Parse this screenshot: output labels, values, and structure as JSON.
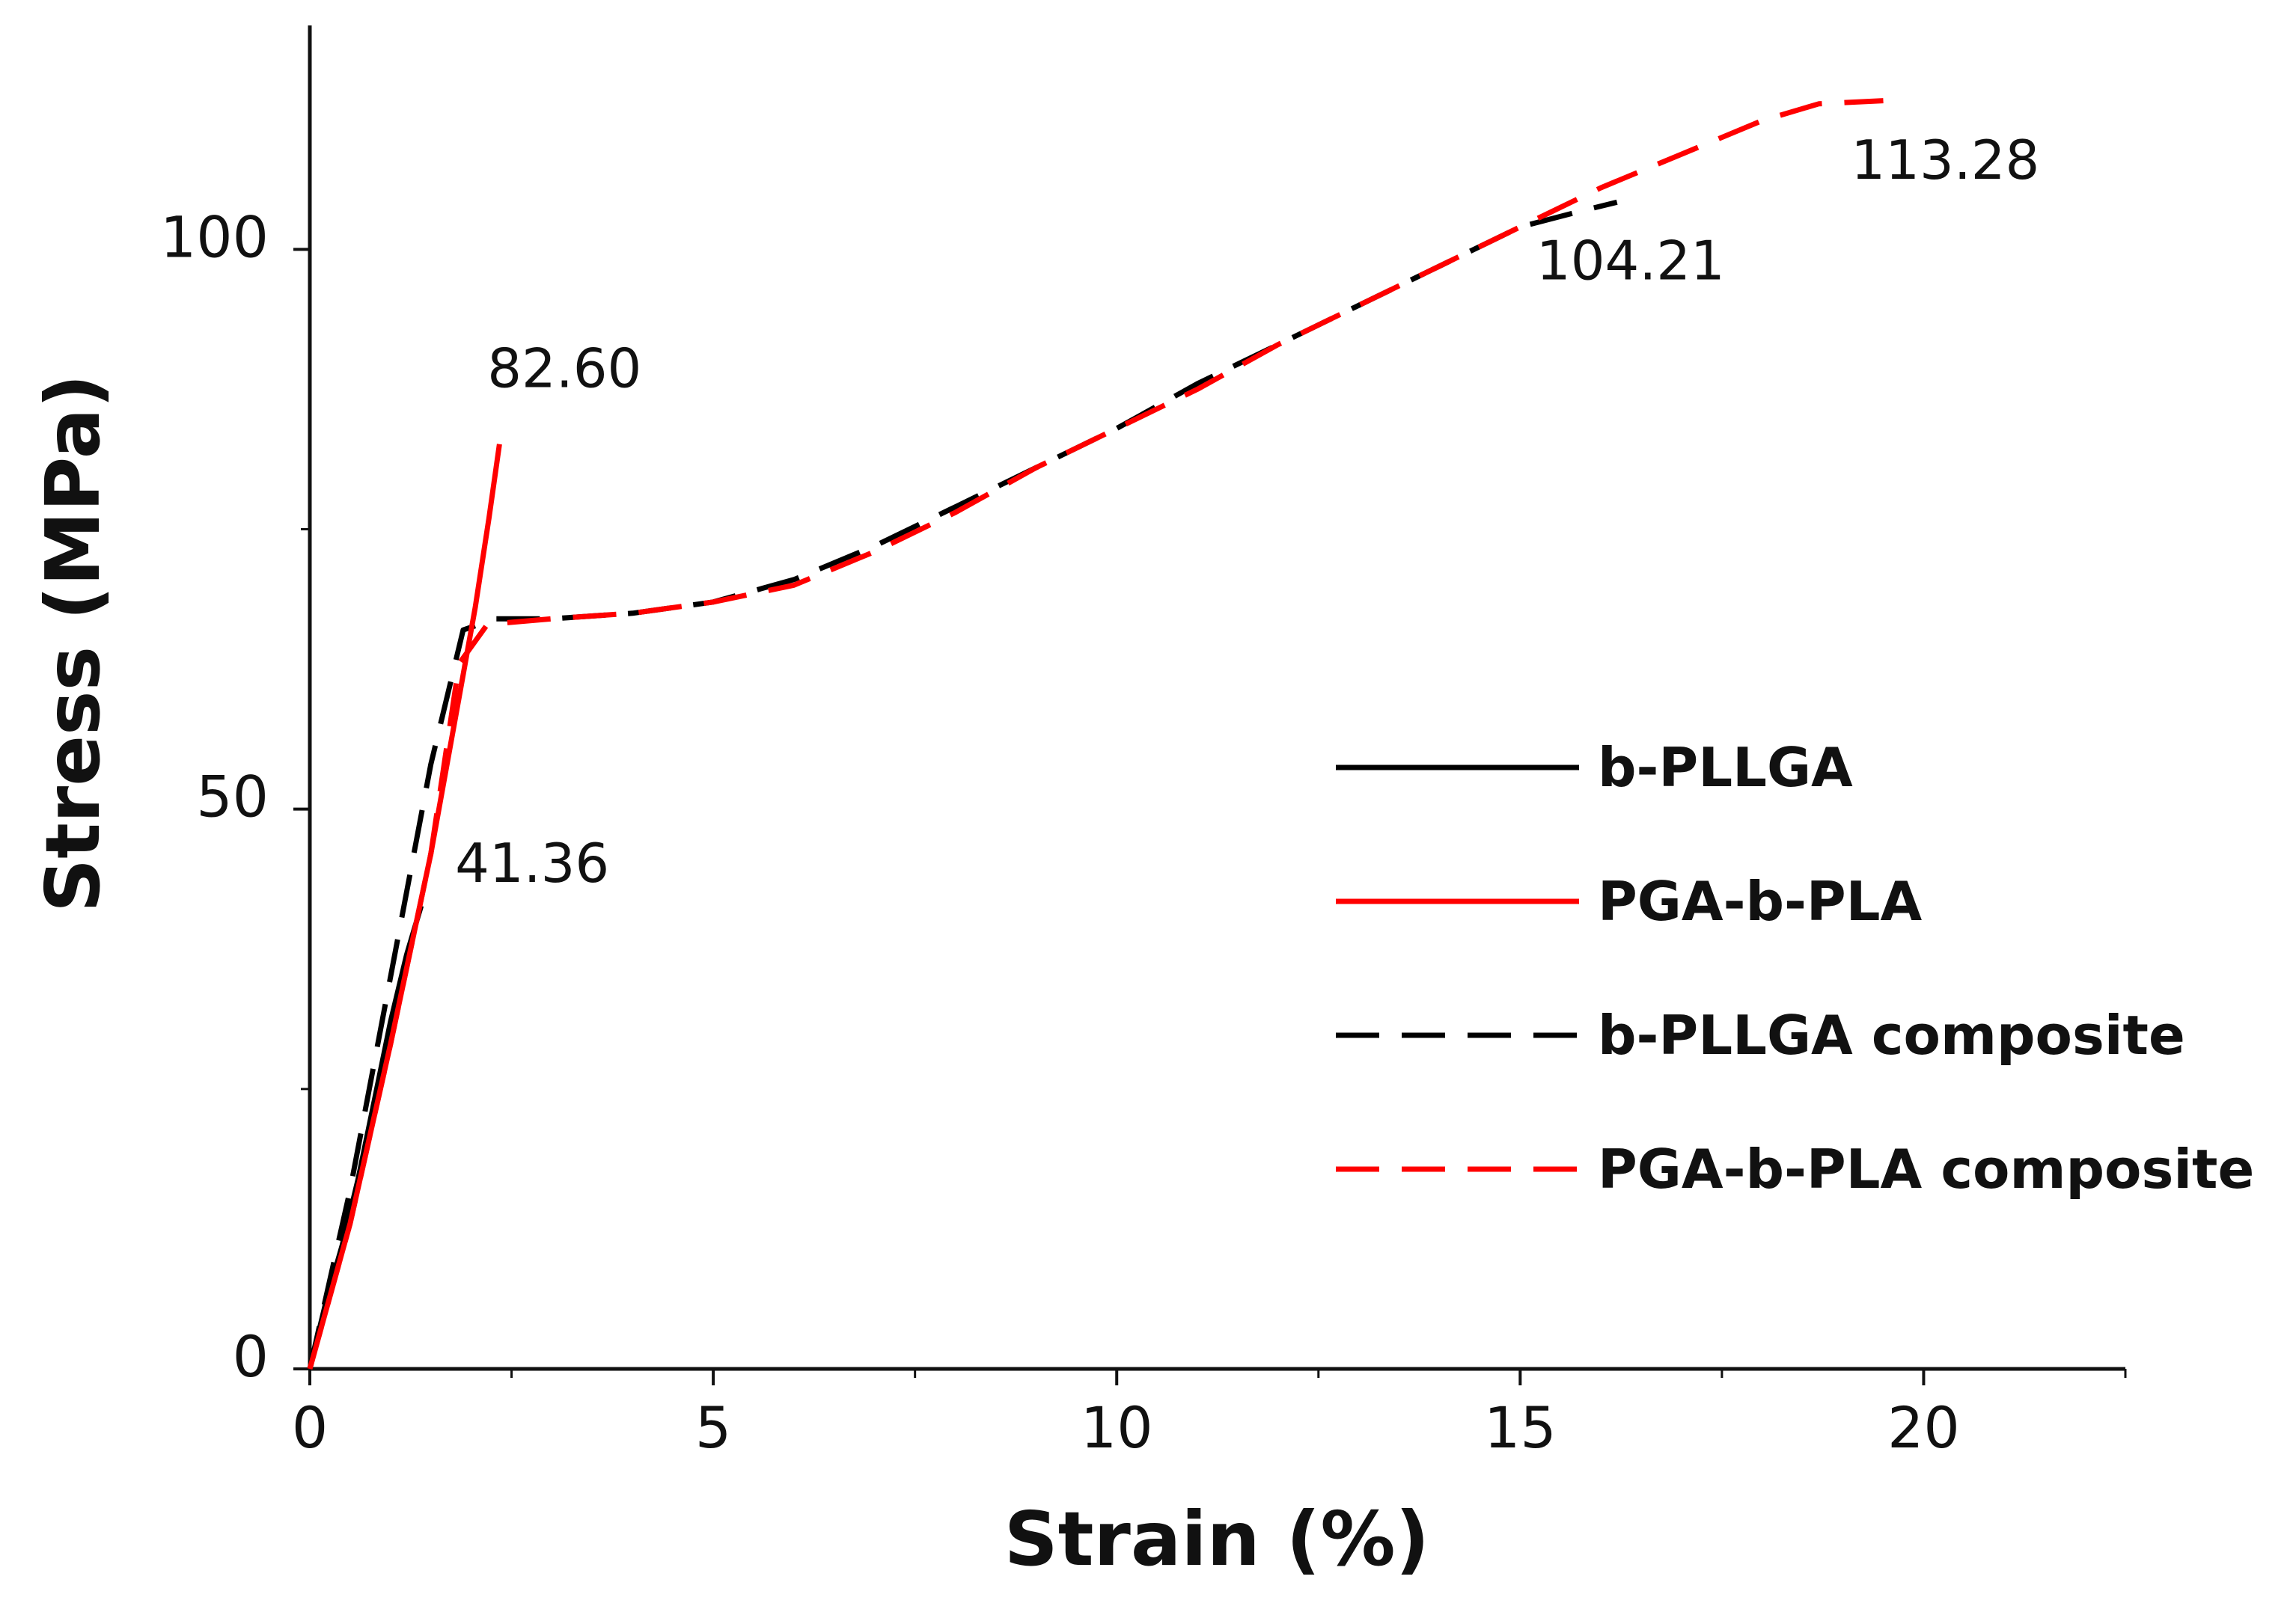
{
  "chart_data": {
    "type": "line",
    "title": "",
    "xlabel": "Strain (%)",
    "ylabel": "Stress (MPa)",
    "xlim": [
      0,
      22.5
    ],
    "ylim": [
      0,
      120
    ],
    "xticks": [
      0,
      5,
      10,
      15,
      20
    ],
    "xtick_labels": [
      "0",
      "5",
      "10",
      "15",
      "20"
    ],
    "xminor": [
      2.5,
      7.5,
      12.5,
      17.5,
      22.5
    ],
    "yticks": [
      0,
      50,
      100
    ],
    "ytick_labels": [
      "0",
      "50",
      "100"
    ],
    "yminor": [
      25,
      75
    ],
    "grid": false,
    "legend_position": "right",
    "series": [
      {
        "name": "b-PLLGA",
        "color": "#000000",
        "dash": "solid",
        "x": [
          0,
          0.2,
          0.4,
          0.6,
          0.8,
          1.0,
          1.2,
          1.38
        ],
        "y": [
          0,
          6,
          11,
          17,
          24,
          31,
          37,
          41.36
        ]
      },
      {
        "name": "PGA-b-PLA",
        "color": "#ff0000",
        "dash": "solid",
        "x": [
          0,
          0.5,
          1.0,
          1.5,
          1.85,
          2.05,
          2.22,
          2.35
        ],
        "y": [
          0,
          13,
          29,
          46,
          60,
          68,
          76,
          82.6
        ]
      },
      {
        "name": "b-PLLGA composite",
        "color": "#000000",
        "dash": "dashed",
        "x": [
          0,
          0.5,
          1.0,
          1.5,
          1.9,
          2.3,
          3,
          4,
          5,
          6,
          7,
          8,
          9,
          10,
          11,
          12,
          13,
          14,
          15,
          15.8,
          16.2
        ],
        "y": [
          0,
          16,
          35,
          54,
          66,
          67,
          67,
          67.5,
          68.5,
          70.5,
          73.5,
          77,
          80.5,
          84,
          88,
          91.5,
          95,
          98.5,
          102,
          103.5,
          104.21
        ]
      },
      {
        "name": "PGA-b-PLA composite",
        "color": "#ff0000",
        "dash": "dashed",
        "x": [
          0,
          0.5,
          1.0,
          1.5,
          1.85,
          2.2,
          3,
          4,
          5,
          6,
          7,
          8,
          9,
          10,
          11,
          12,
          13,
          14,
          15,
          16,
          17,
          18,
          18.7,
          19.5
        ],
        "y": [
          0,
          13,
          29,
          46,
          63,
          66.5,
          67,
          67.5,
          68.5,
          70,
          73,
          76.5,
          80.5,
          84,
          87.5,
          91.5,
          95,
          98.5,
          102,
          105.5,
          108.5,
          111.5,
          113,
          113.28
        ]
      }
    ],
    "annotations": [
      {
        "text": "41.36",
        "x": 1.8,
        "y": 43.5
      },
      {
        "text": "82.60",
        "x": 2.2,
        "y": 87.7
      },
      {
        "text": "104.21",
        "x": 15.2,
        "y": 97.3
      },
      {
        "text": "113.28",
        "x": 19.1,
        "y": 106.3
      }
    ]
  }
}
